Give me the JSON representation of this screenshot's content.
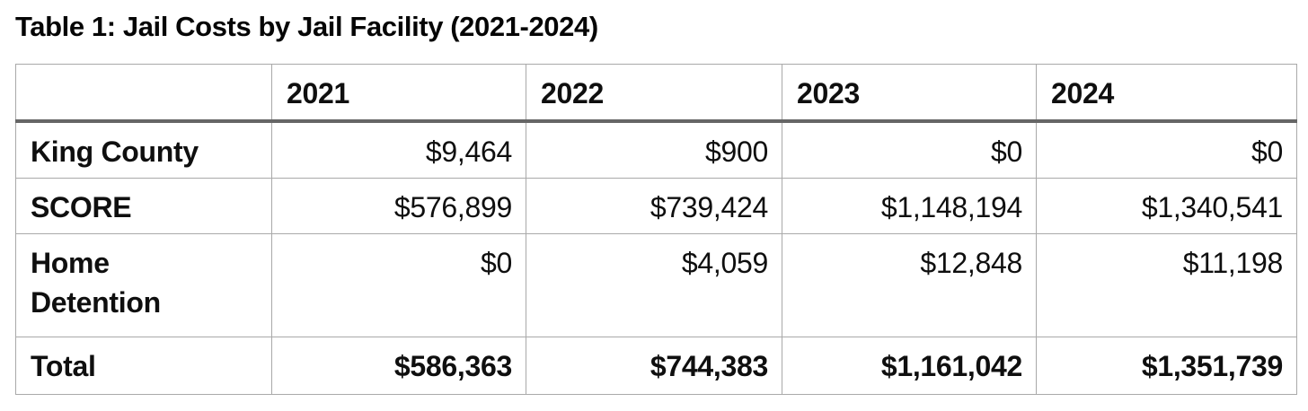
{
  "page": {
    "title": "Table 1: Jail Costs by Jail Facility (2021-2024)"
  },
  "table": {
    "columns": [
      "",
      "2021",
      "2022",
      "2023",
      "2024"
    ],
    "rows": [
      {
        "label": "King County",
        "values": [
          "$9,464",
          "$900",
          "$0",
          "$0"
        ]
      },
      {
        "label": "SCORE",
        "values": [
          "$576,899",
          "$739,424",
          "$1,148,194",
          "$1,340,541"
        ]
      },
      {
        "label": "Home Detention",
        "values": [
          "$0",
          "$4,059",
          "$12,848",
          "$11,198"
        ]
      },
      {
        "label": "Total",
        "values": [
          "$586,363",
          "$744,383",
          "$1,161,042",
          "$1,351,739"
        ],
        "is_total": true
      }
    ]
  },
  "colors": {
    "text": "#0f0f0f",
    "border": "#a9a9a9",
    "header_rule": "#666666",
    "background": "#ffffff"
  },
  "chart_data": {
    "type": "table",
    "title": "Table 1: Jail Costs by Jail Facility (2021-2024)",
    "categories": [
      "2021",
      "2022",
      "2023",
      "2024"
    ],
    "series": [
      {
        "name": "King County",
        "values": [
          9464,
          900,
          0,
          0
        ]
      },
      {
        "name": "SCORE",
        "values": [
          576899,
          739424,
          1148194,
          1340541
        ]
      },
      {
        "name": "Home Detention",
        "values": [
          0,
          4059,
          12848,
          11198
        ]
      },
      {
        "name": "Total",
        "values": [
          586363,
          744383,
          1161042,
          1351739
        ]
      }
    ]
  }
}
